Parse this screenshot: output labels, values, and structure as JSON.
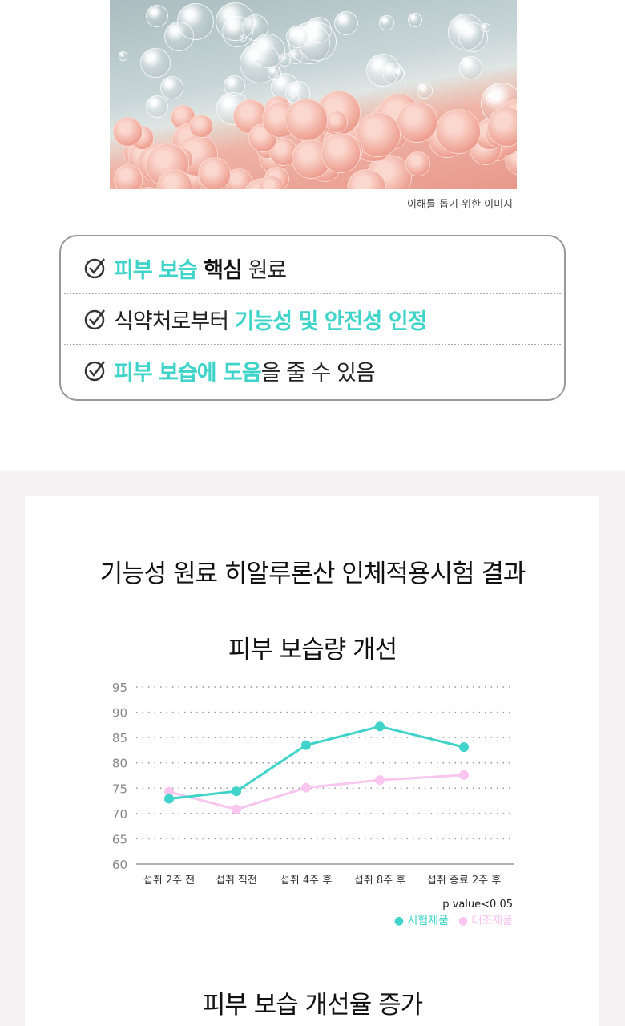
{
  "hero_image": {
    "caption": "이해를 돕기 위한 이미지"
  },
  "checklist": {
    "icon": "check-circle-icon",
    "items": [
      {
        "parts": [
          {
            "text": "피부 보습 ",
            "style": "teal"
          },
          {
            "text": "핵심",
            "style": "dark"
          },
          {
            "text": " 원료",
            "style": "plain"
          }
        ]
      },
      {
        "parts": [
          {
            "text": "식약처로부터 ",
            "style": "plain"
          },
          {
            "text": "기능성 및 안전성 인정",
            "style": "teal"
          }
        ]
      },
      {
        "parts": [
          {
            "text": "피부 보습에 도움",
            "style": "teal"
          },
          {
            "text": "을 줄 수 있음",
            "style": "plain"
          }
        ]
      }
    ]
  },
  "section": {
    "title": "기능성 원료 히알루론산 인체적용시험 결과",
    "subtitle": "피부 보습량 개선",
    "next_title": "피부 보습 개선율 증가"
  },
  "colors": {
    "accent": "#3fd3c9",
    "control": "#f9c6ef"
  },
  "chart_data": {
    "type": "line",
    "categories": [
      "섭취 2주 전",
      "섭취 직전",
      "섭취 4주 후",
      "섭취 8주 후",
      "섭취 종료 2주 후"
    ],
    "series": [
      {
        "name": "시험제품",
        "color": "#3fd3c9",
        "values": [
          72.9,
          74.4,
          83.5,
          87.2,
          83.1
        ]
      },
      {
        "name": "대조제품",
        "color": "#f9c6ef",
        "values": [
          74.3,
          70.8,
          75.1,
          76.6,
          77.6
        ]
      }
    ],
    "ylim": [
      60,
      95
    ],
    "yticks": [
      60,
      65,
      70,
      75,
      80,
      85,
      90,
      95
    ],
    "grid": true,
    "annotation": "p value<0.05",
    "legend_position": "bottom-right"
  }
}
